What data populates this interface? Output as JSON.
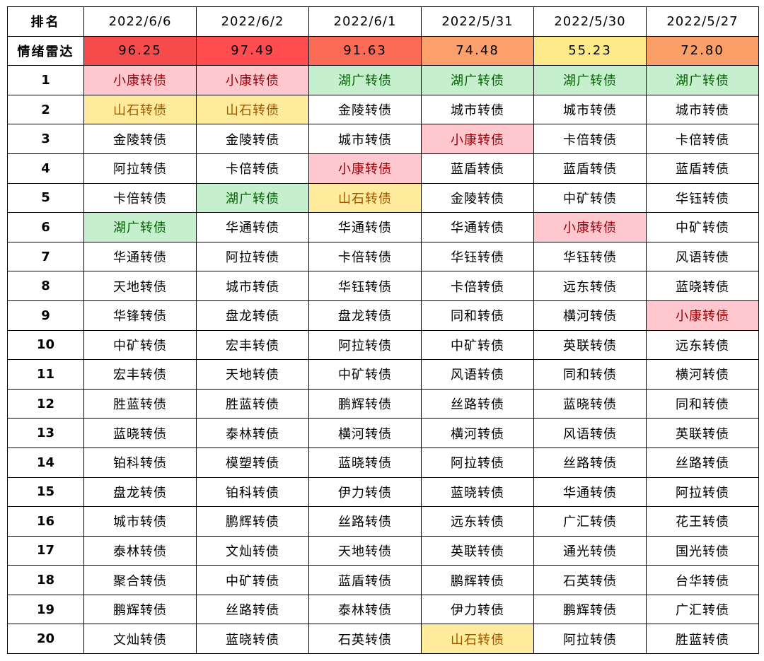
{
  "table": {
    "corner_label": "排名",
    "dates": [
      "2022/6/6",
      "2022/6/2",
      "2022/6/1",
      "2022/5/31",
      "2022/5/30",
      "2022/5/27"
    ],
    "sentiment_label": "情绪雷达",
    "sentiment_values": [
      "96.25",
      "97.49",
      "91.63",
      "74.48",
      "55.23",
      "72.80"
    ],
    "sentiment_colors": [
      "#F64C4C",
      "#FF4D4F",
      "#FA6A55",
      "#FBA06A",
      "#FCE98A",
      "#FA9F68"
    ],
    "highlight_colors": {
      "小康转债": {
        "bg": "#FFC7CE",
        "fg": "#9C0006"
      },
      "山石转债": {
        "bg": "#FFEB9C",
        "fg": "#9C5700"
      },
      "湖广转债": {
        "bg": "#C6EFCE",
        "fg": "#006100"
      }
    },
    "rows": [
      {
        "rank": "1",
        "cells": [
          "小康转债",
          "小康转债",
          "湖广转债",
          "湖广转债",
          "湖广转债",
          "湖广转债"
        ]
      },
      {
        "rank": "2",
        "cells": [
          "山石转债",
          "山石转债",
          "金陵转债",
          "城市转债",
          "城市转债",
          "城市转债"
        ]
      },
      {
        "rank": "3",
        "cells": [
          "金陵转债",
          "金陵转债",
          "城市转债",
          "小康转债",
          "卡倍转债",
          "卡倍转债"
        ]
      },
      {
        "rank": "4",
        "cells": [
          "阿拉转债",
          "卡倍转债",
          "小康转债",
          "蓝盾转债",
          "蓝盾转债",
          "蓝盾转债"
        ]
      },
      {
        "rank": "5",
        "cells": [
          "卡倍转债",
          "湖广转债",
          "山石转债",
          "金陵转债",
          "中矿转债",
          "华钰转债"
        ]
      },
      {
        "rank": "6",
        "cells": [
          "湖广转债",
          "华通转债",
          "华通转债",
          "华通转债",
          "小康转债",
          "中矿转债"
        ]
      },
      {
        "rank": "7",
        "cells": [
          "华通转债",
          "阿拉转债",
          "卡倍转债",
          "华钰转债",
          "华钰转债",
          "风语转债"
        ]
      },
      {
        "rank": "8",
        "cells": [
          "天地转债",
          "城市转债",
          "华钰转债",
          "卡倍转债",
          "远东转债",
          "蓝晓转债"
        ]
      },
      {
        "rank": "9",
        "cells": [
          "华锋转债",
          "盘龙转债",
          "盘龙转债",
          "同和转债",
          "横河转债",
          "小康转债"
        ]
      },
      {
        "rank": "10",
        "cells": [
          "中矿转债",
          "宏丰转债",
          "阿拉转债",
          "中矿转债",
          "英联转债",
          "远东转债"
        ]
      },
      {
        "rank": "11",
        "cells": [
          "宏丰转债",
          "天地转债",
          "中矿转债",
          "风语转债",
          "同和转债",
          "横河转债"
        ]
      },
      {
        "rank": "12",
        "cells": [
          "胜蓝转债",
          "胜蓝转债",
          "鹏辉转债",
          "丝路转债",
          "蓝晓转债",
          "同和转债"
        ]
      },
      {
        "rank": "13",
        "cells": [
          "蓝晓转债",
          "泰林转债",
          "横河转债",
          "横河转债",
          "风语转债",
          "英联转债"
        ]
      },
      {
        "rank": "14",
        "cells": [
          "铂科转债",
          "模塑转债",
          "蓝晓转债",
          "阿拉转债",
          "丝路转债",
          "丝路转债"
        ]
      },
      {
        "rank": "15",
        "cells": [
          "盘龙转债",
          "铂科转债",
          "伊力转债",
          "蓝晓转债",
          "华通转债",
          "阿拉转债"
        ]
      },
      {
        "rank": "16",
        "cells": [
          "城市转债",
          "鹏辉转债",
          "丝路转债",
          "远东转债",
          "广汇转债",
          "花王转债"
        ]
      },
      {
        "rank": "17",
        "cells": [
          "泰林转债",
          "文灿转债",
          "天地转债",
          "英联转债",
          "通光转债",
          "国光转债"
        ]
      },
      {
        "rank": "18",
        "cells": [
          "聚合转债",
          "中矿转债",
          "蓝盾转债",
          "鹏辉转债",
          "石英转债",
          "台华转债"
        ]
      },
      {
        "rank": "19",
        "cells": [
          "鹏辉转债",
          "丝路转债",
          "泰林转债",
          "伊力转债",
          "鹏辉转债",
          "广汇转债"
        ]
      },
      {
        "rank": "20",
        "cells": [
          "文灿转债",
          "蓝晓转债",
          "石英转债",
          "山石转债",
          "阿拉转债",
          "胜蓝转债"
        ]
      }
    ]
  }
}
